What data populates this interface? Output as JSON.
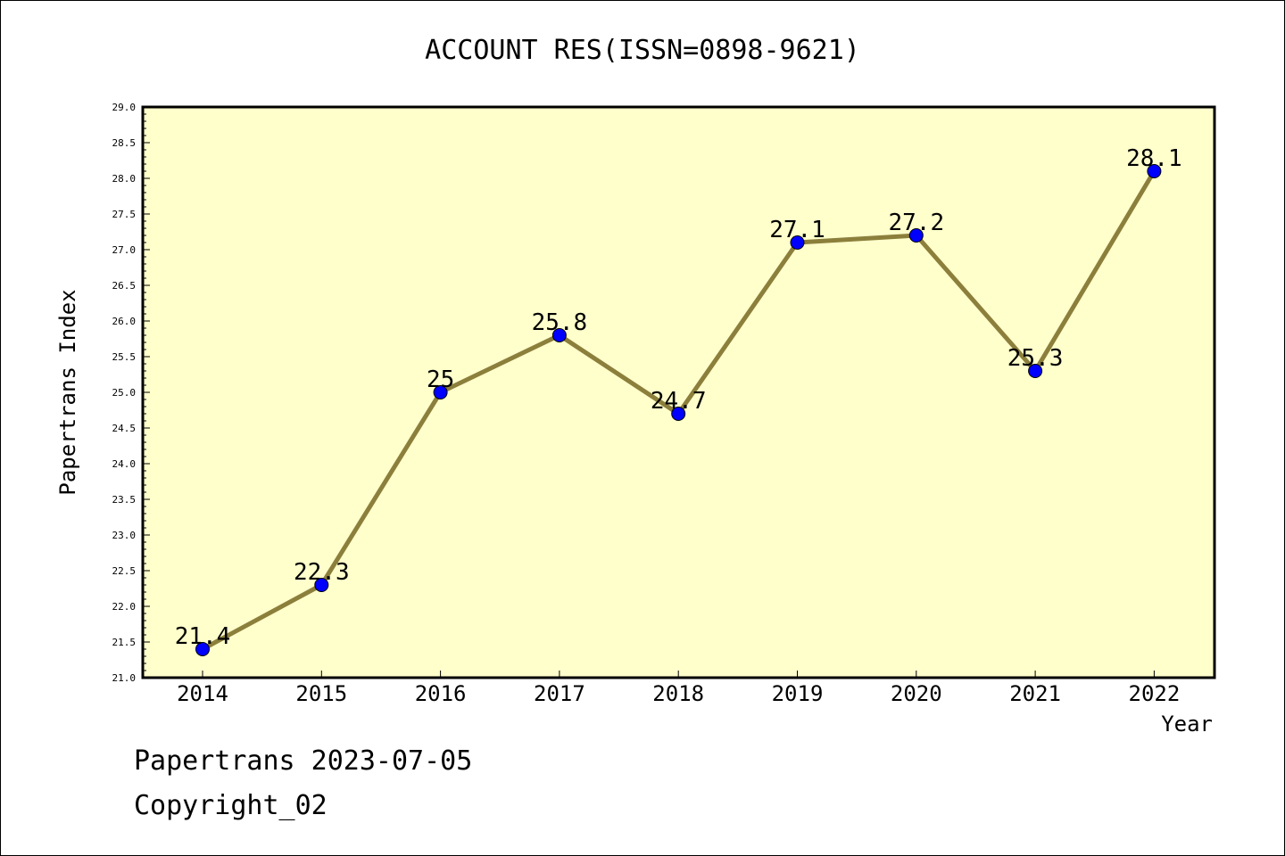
{
  "chart_data": {
    "type": "line",
    "title": "ACCOUNT RES(ISSN=0898-9621)",
    "xlabel": "Year",
    "ylabel": "Papertrans Index",
    "categories": [
      "2014",
      "2015",
      "2016",
      "2017",
      "2018",
      "2019",
      "2020",
      "2021",
      "2022"
    ],
    "series": [
      {
        "values": [
          21.4,
          22.3,
          25,
          25.8,
          24.7,
          27.1,
          27.2,
          25.3,
          28.1
        ]
      }
    ],
    "data_labels": [
      "21.4",
      "22.3",
      "25",
      "25.8",
      "24.7",
      "27.1",
      "27.2",
      "25.3",
      "28.1"
    ],
    "ylim": [
      21.0,
      29.0
    ],
    "yticks": [
      "21.0",
      "21.5",
      "22.0",
      "22.5",
      "23.0",
      "23.5",
      "24.0",
      "24.5",
      "25.0",
      "25.5",
      "26.0",
      "26.5",
      "27.0",
      "27.5",
      "28.0",
      "28.5",
      "29.0"
    ],
    "grid": false,
    "colors": {
      "line": "#8c7f3c",
      "marker": "#0000ff",
      "plot_background": "#ffffcc"
    }
  },
  "footer": {
    "line1": "Papertrans 2023-07-05",
    "line2": "Copyright_02"
  }
}
